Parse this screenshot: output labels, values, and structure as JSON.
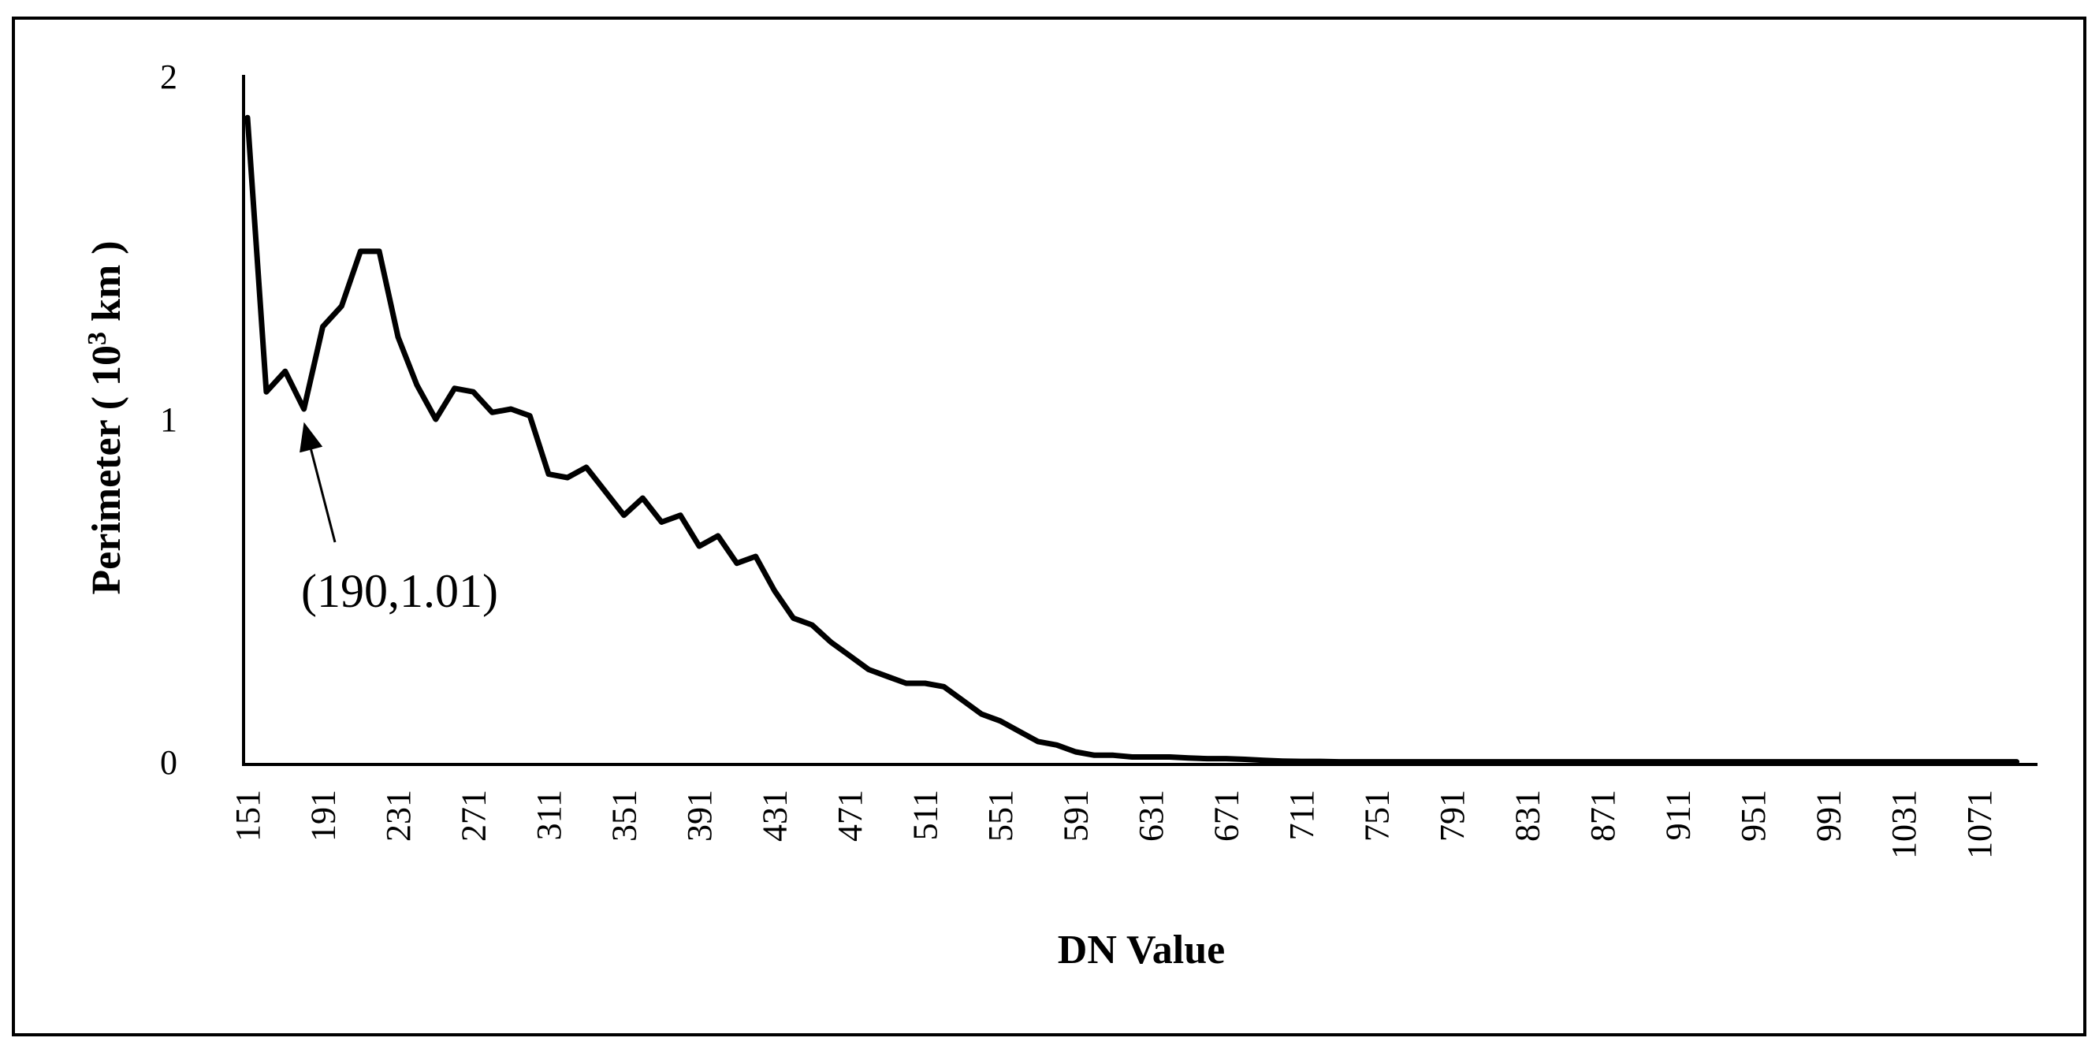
{
  "chart_data": {
    "type": "line",
    "title": "",
    "xlabel": "DN Value",
    "ylabel_main": "Perimeter ( 10",
    "ylabel_sup": "3",
    "ylabel_end": " km )",
    "ylim": [
      0,
      2
    ],
    "xlim": [
      151,
      1100
    ],
    "x_step": 10,
    "y_tick_labels": [
      "0",
      "1",
      "2"
    ],
    "x_tick_labels": [
      "151",
      "191",
      "231",
      "271",
      "311",
      "351",
      "391",
      "431",
      "471",
      "511",
      "551",
      "591",
      "631",
      "671",
      "711",
      "751",
      "791",
      "831",
      "871",
      "911",
      "951",
      "991",
      "1031",
      "1071"
    ],
    "annotation": {
      "text": "(190,1.01)",
      "x": 181,
      "y": 1.01
    },
    "grid": false,
    "legend": "none",
    "colors": {
      "line": "#000000",
      "axis": "#000000",
      "frame": "#000000"
    },
    "series": [
      {
        "values": [
          1.88,
          1.08,
          1.14,
          1.03,
          1.27,
          1.33,
          1.49,
          1.49,
          1.24,
          1.1,
          1.0,
          1.09,
          1.08,
          1.02,
          1.03,
          1.01,
          0.84,
          0.83,
          0.86,
          0.79,
          0.72,
          0.77,
          0.7,
          0.72,
          0.63,
          0.66,
          0.58,
          0.6,
          0.5,
          0.42,
          0.4,
          0.35,
          0.31,
          0.27,
          0.25,
          0.23,
          0.23,
          0.22,
          0.18,
          0.14,
          0.12,
          0.09,
          0.06,
          0.05,
          0.03,
          0.02,
          0.02,
          0.015,
          0.015,
          0.015,
          0.012,
          0.01,
          0.01,
          0.008,
          0.005,
          0.003,
          0.002,
          0.002,
          0.001,
          0.001,
          0.001,
          0.001,
          0.001,
          0.001,
          0.001,
          0.001,
          0.001,
          0.001,
          0.001,
          0.001,
          0.001,
          0.001,
          0.001,
          0.001,
          0.001,
          0.001,
          0.001,
          0.001,
          0.001,
          0.001,
          0.001,
          0.001,
          0.001,
          0.001,
          0.001,
          0.001,
          0.001,
          0.001,
          0.001,
          0.001,
          0.001,
          0.001,
          0.001,
          0.001,
          0.001
        ]
      }
    ]
  }
}
